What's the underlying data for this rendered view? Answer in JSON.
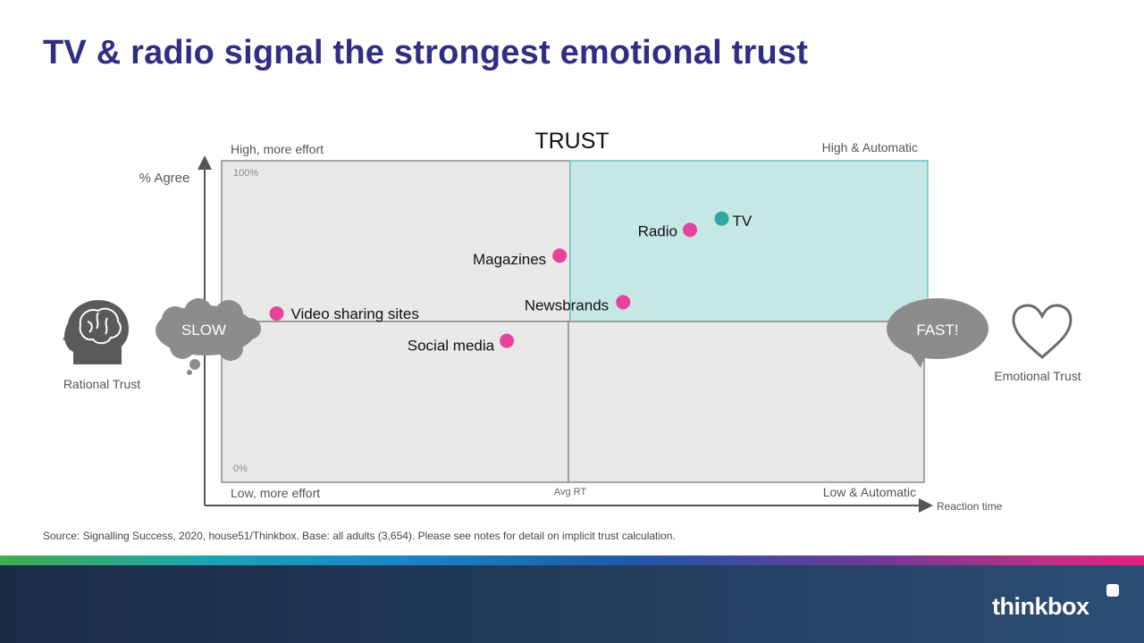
{
  "slide": {
    "title": "TV & radio signal the strongest emotional trust",
    "source": "Source: Signalling Success, 2020, house51/Thinkbox.  Base: all adults (3,654). Please see notes for detail on implicit trust calculation.",
    "logo": "thinkbox"
  },
  "colors": {
    "title": "#302d84",
    "dot_pink": "#e6449a",
    "dot_teal": "#2ea7a1",
    "quadrant_grey": "#ebe8e8",
    "quadrant_teal": "#c5e8e6",
    "bubble_grey": "#8c8c8c"
  },
  "chart_data": {
    "type": "scatter",
    "title": "TRUST",
    "ylabel": "% Agree",
    "xlabel": "Reaction time",
    "ylim": [
      0,
      100
    ],
    "y_tick_labels": [
      "100%",
      "0%"
    ],
    "x_mid_label": "Avg RT",
    "quadrant_labels": {
      "top_left": "High, more effort",
      "top_right": "High & Automatic",
      "bottom_left": "Low, more effort",
      "bottom_right": "Low & Automatic"
    },
    "left_icon_label": "Rational Trust",
    "right_icon_label": "Emotional Trust",
    "slow_label": "SLOW",
    "fast_label": "FAST!",
    "points": [
      {
        "label": "TV",
        "x": 71,
        "y": 82,
        "color": "#2ea7a1"
      },
      {
        "label": "Radio",
        "x": 66.5,
        "y": 78.5,
        "color": "#e6449a"
      },
      {
        "label": "Magazines",
        "x": 48,
        "y": 70.5,
        "color": "#e6449a"
      },
      {
        "label": "Newsbrands",
        "x": 57,
        "y": 56,
        "color": "#e6449a"
      },
      {
        "label": "Video sharing sites",
        "x": 7.8,
        "y": 52.5,
        "color": "#e6449a"
      },
      {
        "label": "Social media",
        "x": 40.5,
        "y": 44,
        "color": "#e6449a"
      }
    ]
  }
}
